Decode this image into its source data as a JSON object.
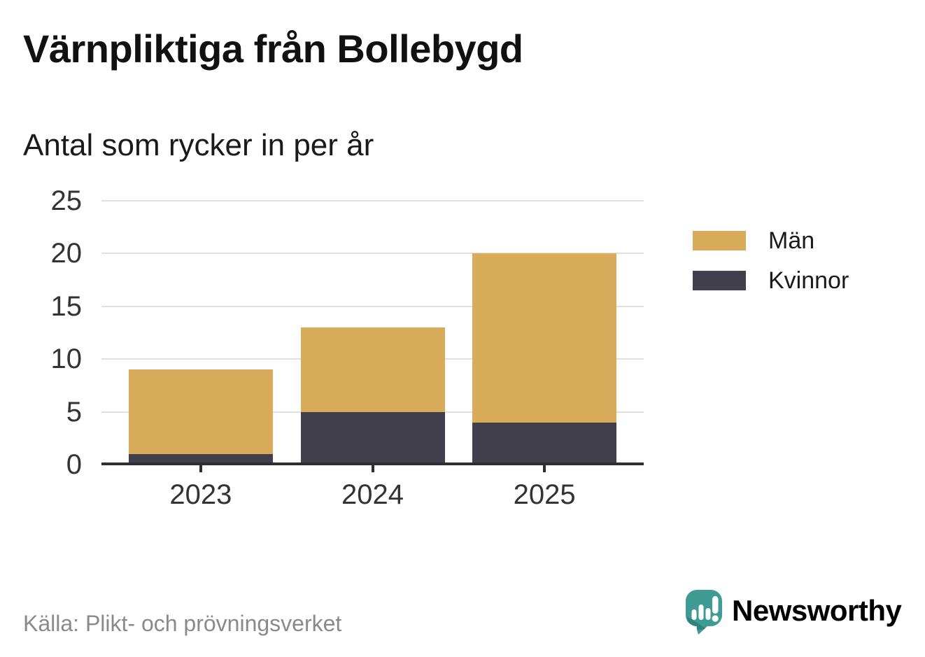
{
  "header": {
    "title": "Värnpliktiga från Bollebygd",
    "subtitle": "Antal som rycker in per år"
  },
  "chart_data": {
    "type": "bar",
    "stacked": true,
    "title": "Värnpliktiga från Bollebygd",
    "subtitle": "Antal som rycker in per år",
    "categories": [
      "2023",
      "2024",
      "2025"
    ],
    "series": [
      {
        "name": "Män",
        "color": "#D8AC5B",
        "values": [
          8,
          8,
          16
        ]
      },
      {
        "name": "Kvinnor",
        "color": "#413F4B",
        "values": [
          1,
          5,
          4
        ]
      }
    ],
    "stack_order_bottom_to_top": [
      "Kvinnor",
      "Män"
    ],
    "totals": [
      9,
      13,
      20
    ],
    "xlabel": "",
    "ylabel": "",
    "ylim": [
      0,
      25
    ],
    "yticks": [
      0,
      5,
      10,
      15,
      20,
      25
    ],
    "grid": true,
    "legend_position": "right"
  },
  "footer": {
    "source": "Källa: Plikt- och prövningsverket",
    "brand_name": "Newsworthy"
  },
  "colors": {
    "men": "#D8AC5B",
    "women": "#413F4B",
    "brand_teal": "#3E9C94",
    "grid": "#E0E0E0",
    "axis": "#2F2F2F",
    "text_dark": "#1A1A1A",
    "text_gray": "#8A8A8A"
  }
}
